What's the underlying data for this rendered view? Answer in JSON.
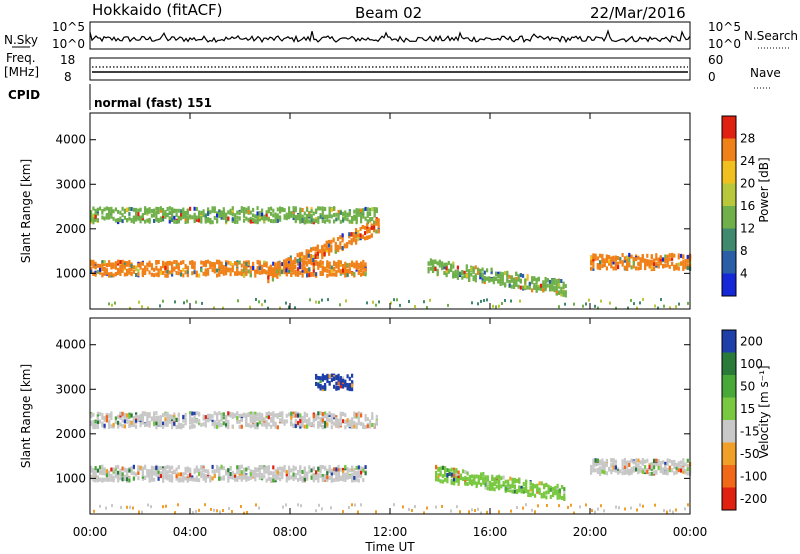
{
  "header": {
    "station": "Hokkaido (fitACF)",
    "beam": "Beam 02",
    "date": "22/Mar/2016"
  },
  "top_panels": {
    "nsky_label": "N.Sky",
    "nsearch_label": "N.Search",
    "nsky_ticks": [
      "10^5",
      "10^0"
    ],
    "freq_label_line1": "Freq.",
    "freq_label_line2": "[MHz]",
    "freq_ticks": [
      "18",
      "8"
    ],
    "nave_label": "Nave",
    "nave_ticks": [
      "60",
      "0"
    ],
    "cpid_label": "CPID",
    "cpid_text": "normal (fast) 151"
  },
  "chart_data": [
    {
      "type": "heatmap",
      "panel": "power",
      "ylabel": "Slant Range [km]",
      "xlabel": "Time UT",
      "yticks": [
        1000,
        2000,
        3000,
        4000
      ],
      "ylim": [
        200,
        4600
      ],
      "colorbar_label": "Power [dB]",
      "colorbar_ticks": [
        4,
        8,
        12,
        16,
        20,
        24,
        28
      ],
      "colorbar_colors": [
        "#1428d8",
        "#2a5fa8",
        "#3f8a6e",
        "#6fb04a",
        "#b8c83a",
        "#f0c020",
        "#f08018",
        "#e02010"
      ],
      "structures": [
        {
          "band": "main echo",
          "t_start": 0.0,
          "t_end": 11.0,
          "range_km": 1150,
          "power_db": 26
        },
        {
          "band": "upper echo",
          "t_start": 0.0,
          "t_end": 11.5,
          "range_km": 2350,
          "power_db": 14
        },
        {
          "band": "rising band",
          "t_start": 7.0,
          "t_end": 11.5,
          "range_km_start": 1000,
          "range_km_end": 2100,
          "power_db": 24
        },
        {
          "band": "afternoon oblique",
          "t_start": 13.5,
          "t_end": 19.0,
          "range_km_start": 1200,
          "range_km_end": 700,
          "power_db": 14
        },
        {
          "band": "evening",
          "t_start": 20.0,
          "t_end": 24.0,
          "range_km": 1300,
          "power_db": 24
        }
      ]
    },
    {
      "type": "heatmap",
      "panel": "velocity",
      "ylabel": "Slant Range [km]",
      "xlabel": "Time UT",
      "yticks": [
        1000,
        2000,
        3000,
        4000
      ],
      "ylim": [
        200,
        4600
      ],
      "colorbar_label": "Velocity [m s⁻¹]",
      "colorbar_ticks": [
        200,
        100,
        50,
        15,
        -15,
        -50,
        -100,
        -200
      ],
      "colorbar_colors": [
        "#1e3ea8",
        "#2a7a3a",
        "#48a838",
        "#78c840",
        "#c8c8c8",
        "#f0a028",
        "#f06818",
        "#e02010"
      ],
      "structures": [
        {
          "band": "main echo",
          "t_start": 0.0,
          "t_end": 11.0,
          "range_km": 1150,
          "velocity_ms": 0
        },
        {
          "band": "upper echo",
          "t_start": 0.0,
          "t_end": 11.5,
          "range_km": 2350,
          "velocity_ms": 0
        },
        {
          "band": "positive patch",
          "t_start": 9.0,
          "t_end": 10.5,
          "range_km": 3200,
          "velocity_ms": 200
        },
        {
          "band": "afternoon oblique",
          "t_start": 13.8,
          "t_end": 19.0,
          "range_km_start": 1150,
          "range_km_end": 700,
          "velocity_ms": 60
        },
        {
          "band": "evening",
          "t_start": 20.0,
          "t_end": 24.0,
          "range_km": 1300,
          "velocity_ms": 0
        }
      ]
    }
  ],
  "x_axis": {
    "ticks": [
      "00:00",
      "04:00",
      "08:00",
      "12:00",
      "16:00",
      "20:00",
      "00:00"
    ],
    "xlim_hours": [
      0,
      24
    ],
    "label": "Time UT"
  }
}
